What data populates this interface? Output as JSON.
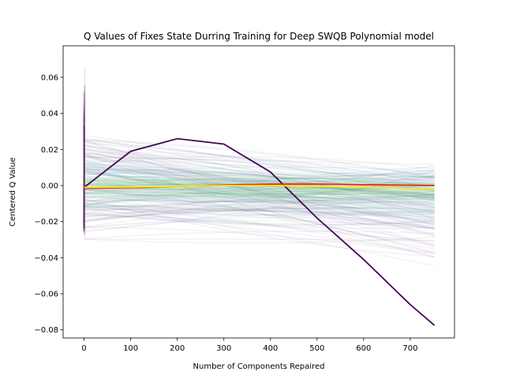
{
  "chart_data": {
    "type": "line",
    "title": "Q Values  of Fixes State Durring Training for Deep SWQB Polynomial model",
    "xlabel": "Number of Components Repaired",
    "ylabel": "Centered Q Value",
    "xlim": [
      -45,
      795
    ],
    "ylim": [
      -0.0845,
      0.0775
    ],
    "xticks": [
      0,
      100,
      200,
      300,
      400,
      500,
      600,
      700
    ],
    "yticks": [
      -0.08,
      -0.06,
      -0.04,
      -0.02,
      0.0,
      0.02,
      0.04,
      0.06
    ],
    "ytick_labels": [
      "−0.08",
      "−0.06",
      "−0.04",
      "−0.02",
      "0.00",
      "0.02",
      "0.04",
      "0.06"
    ],
    "grid": false,
    "legend": "none",
    "colormap": "viridis",
    "colors": {
      "early": "#440154",
      "mid_dark": "#3b528b",
      "mid": "#21918c",
      "late": "#5ec962",
      "final_yellow": "#fde725",
      "final_red": "#e8281c",
      "final_orange": "#f28e2b"
    },
    "highlighted_series": [
      {
        "color": "#440154",
        "points": [
          [
            0,
            -0.001
          ],
          [
            100,
            0.019
          ],
          [
            200,
            0.026
          ],
          [
            300,
            0.023
          ],
          [
            400,
            0.0075
          ],
          [
            500,
            -0.018
          ],
          [
            600,
            -0.041
          ],
          [
            700,
            -0.066
          ],
          [
            752,
            -0.0775
          ]
        ]
      },
      {
        "color": "#e8281c",
        "points": [
          [
            0,
            -0.0015
          ],
          [
            100,
            -0.0012
          ],
          [
            200,
            -0.0005
          ],
          [
            300,
            0.0003
          ],
          [
            400,
            0.0008
          ],
          [
            500,
            0.0008
          ],
          [
            600,
            0.0005
          ],
          [
            700,
            0.0002
          ],
          [
            752,
            0.0
          ]
        ]
      },
      {
        "color": "#fde725",
        "points": [
          [
            0,
            -0.001
          ],
          [
            100,
            -0.0008
          ],
          [
            200,
            -0.0004
          ],
          [
            300,
            0.0
          ],
          [
            400,
            0.0
          ],
          [
            500,
            -0.0004
          ],
          [
            600,
            -0.001
          ],
          [
            700,
            -0.0016
          ],
          [
            752,
            -0.002
          ]
        ]
      }
    ],
    "bands": [
      {
        "color": "#440154",
        "start": [
          -0.03,
          0.028
        ],
        "end": [
          -0.045,
          0.012
        ],
        "opacity": 0.05,
        "count": 60
      },
      {
        "color": "#3b528b",
        "start": [
          -0.026,
          0.026
        ],
        "end": [
          -0.025,
          0.012
        ],
        "opacity": 0.06,
        "count": 60
      },
      {
        "color": "#21918c",
        "start": [
          -0.012,
          0.014
        ],
        "end": [
          -0.018,
          0.01
        ],
        "opacity": 0.08,
        "count": 50
      },
      {
        "color": "#5ec962",
        "start": [
          -0.004,
          0.004
        ],
        "end": [
          -0.008,
          0.002
        ],
        "opacity": 0.12,
        "count": 25
      }
    ],
    "spike": {
      "x": 0,
      "ymin": -0.03,
      "ymax": 0.07
    }
  }
}
